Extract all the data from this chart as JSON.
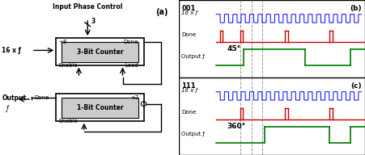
{
  "fig_width": 4.51,
  "fig_height": 1.92,
  "dpi": 100,
  "bg_color": "#ffffff",
  "schematic": {
    "title": "Input Phase Control",
    "box1_label": "3-Bit Counter",
    "box1_div": "÷8",
    "box1_done": "Done",
    "box1_enable": "Enable",
    "box1_load": "Load",
    "box2_label": "1-Bit Counter",
    "box2_div": "÷2",
    "box2_done": "Done",
    "box2_enable": "Enable",
    "input_label": "16 x ƒ",
    "output_label": "Output",
    "output_f": "ƒ",
    "panel_label": "(a)"
  },
  "panel_b": {
    "label": "(b)",
    "code": "001",
    "angle": "45°",
    "blue_color": "#0000ff",
    "red_color": "#cc0000",
    "green_color": "#007700"
  },
  "panel_c": {
    "label": "(c)",
    "code": "111",
    "angle": "360°",
    "blue_color": "#0000ff",
    "red_color": "#cc0000",
    "green_color": "#007700"
  }
}
